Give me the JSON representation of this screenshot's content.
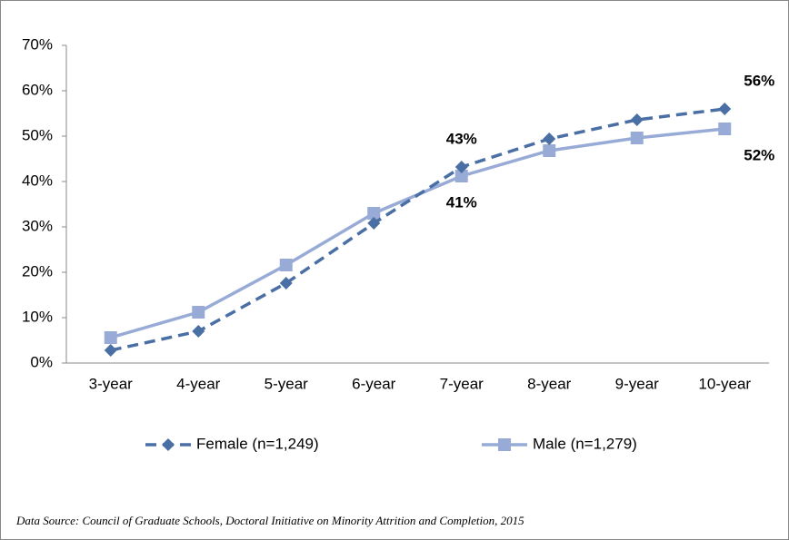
{
  "chart_data": {
    "type": "line",
    "categories": [
      "3-year",
      "4-year",
      "5-year",
      "6-year",
      "7-year",
      "8-year",
      "9-year",
      "10-year"
    ],
    "series": [
      {
        "name": "Female (n=1,249)",
        "color": "#4a6fa5",
        "dash": true,
        "marker": "diamond",
        "values": [
          2.8,
          7,
          17.6,
          30.8,
          43.2,
          49.4,
          53.6,
          56
        ],
        "value_labels": [
          null,
          null,
          null,
          null,
          "43%",
          null,
          null,
          "56%"
        ]
      },
      {
        "name": "Male (n=1,279)",
        "color": "#98abd6",
        "dash": false,
        "marker": "square",
        "values": [
          5.6,
          11.2,
          21.6,
          33,
          41.2,
          46.8,
          49.6,
          51.6
        ],
        "value_labels": [
          null,
          null,
          null,
          null,
          "41%",
          null,
          null,
          "52%"
        ]
      }
    ],
    "ylim": [
      0,
      70
    ],
    "yticks": [
      {
        "value": 0,
        "label": "0%"
      },
      {
        "value": 10,
        "label": "10%"
      },
      {
        "value": 20,
        "label": "20%"
      },
      {
        "value": 30,
        "label": "30%"
      },
      {
        "value": 40,
        "label": "40%"
      },
      {
        "value": 50,
        "label": "50%"
      },
      {
        "value": 60,
        "label": "60%"
      },
      {
        "value": 70,
        "label": "70%"
      }
    ],
    "grid": false,
    "legend": "bottom",
    "source": "Data Source:  Council of Graduate Schools, Doctoral Initiative on Minority Attrition and Completion, 2015"
  }
}
